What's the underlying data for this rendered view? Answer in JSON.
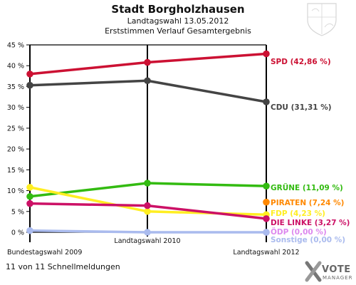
{
  "header": {
    "title": "Stadt Borgholzhausen",
    "subtitle1": "Landtagswahl 13.05.2012",
    "subtitle2": "Erststimmen Verlauf Gesamtergebnis"
  },
  "footer": {
    "status": "11 von 11 Schnellmeldungen",
    "logo_line1": "VOTE",
    "logo_line2": "MANAGER"
  },
  "chart_data": {
    "type": "line",
    "categories": [
      "Bundestagswahl 2009",
      "Landtagswahl 2010",
      "Landtagswahl 2012"
    ],
    "ylim": [
      0,
      45
    ],
    "yticks": [
      0,
      5,
      10,
      15,
      20,
      25,
      30,
      35,
      40,
      45
    ],
    "ytick_labels": [
      "0 %",
      "5 %",
      "10 %",
      "15 %",
      "20 %",
      "25 %",
      "30 %",
      "35 %",
      "40 %",
      "45 %"
    ],
    "grid": "vertical lines at each election",
    "series": [
      {
        "name": "SPD",
        "label": "SPD (42,86 %)",
        "color": "#cc1133",
        "values": [
          38.0,
          40.8,
          42.86
        ]
      },
      {
        "name": "CDU",
        "label": "CDU (31,31 %)",
        "color": "#444444",
        "values": [
          35.3,
          36.4,
          31.31
        ]
      },
      {
        "name": "GRÜNE",
        "label": "GRÜNE (11,09 %)",
        "color": "#33bb11",
        "values": [
          8.6,
          11.8,
          11.09
        ]
      },
      {
        "name": "PIRATEN",
        "label": "PIRATEN (7,24 %)",
        "color": "#ff8800",
        "values": [
          null,
          null,
          7.24
        ]
      },
      {
        "name": "FDP",
        "label": "FDP (4,23 %)",
        "color": "#ffee22",
        "values": [
          10.8,
          5.0,
          4.23
        ]
      },
      {
        "name": "DIE LINKE",
        "label": "DIE LINKE (3,27 %)",
        "color": "#cc1166",
        "values": [
          6.9,
          6.4,
          3.27
        ]
      },
      {
        "name": "ÖDP",
        "label": "ÖDP (0,00 %)",
        "color": "#dd88ee",
        "values": [
          null,
          null,
          0.0
        ]
      },
      {
        "name": "Sonstige",
        "label": "Sonstige (0,00 %)",
        "color": "#aabbee",
        "values": [
          0.4,
          0.0,
          0.0
        ]
      }
    ]
  }
}
